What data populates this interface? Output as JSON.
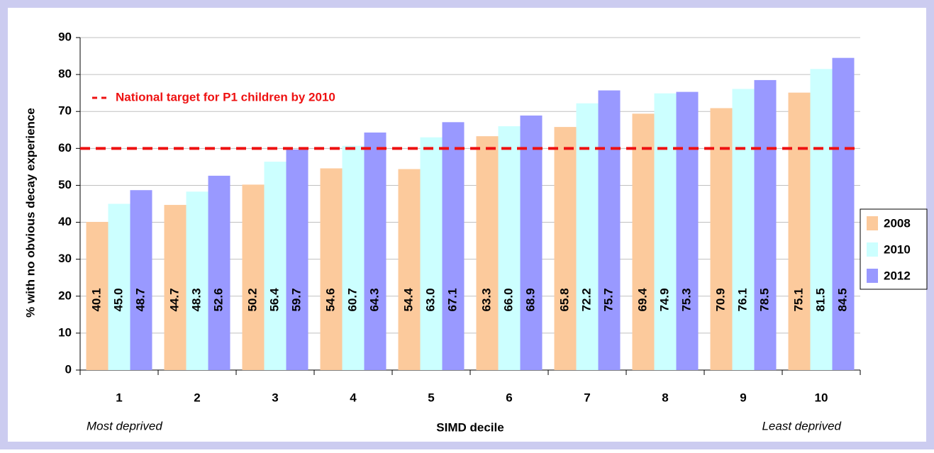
{
  "chart_data": {
    "type": "bar",
    "x_label": "SIMD decile",
    "y_label": "% with no obvious decay experience",
    "x_notes": [
      "Most deprived",
      "Least deprived"
    ],
    "categories": [
      "1",
      "2",
      "3",
      "4",
      "5",
      "6",
      "7",
      "8",
      "9",
      "10"
    ],
    "series": [
      {
        "name": "2008",
        "color": "#fcca9c",
        "values": [
          40.1,
          44.7,
          50.2,
          54.6,
          54.4,
          63.3,
          65.8,
          69.4,
          70.9,
          75.1
        ],
        "value_labels": [
          "40.1",
          "44.7",
          "50.2",
          "54.6",
          "54.4",
          "63.3",
          "65.8",
          "69.4",
          "70.9",
          "75.1"
        ]
      },
      {
        "name": "2010",
        "color": "#ccffff",
        "values": [
          45.0,
          48.3,
          56.4,
          60.7,
          63.0,
          66.0,
          72.2,
          74.9,
          76.1,
          81.5
        ],
        "value_labels": [
          "45.0",
          "48.3",
          "56.4",
          "60.7",
          "63.0",
          "66.0",
          "72.2",
          "74.9",
          "76.1",
          "81.5"
        ]
      },
      {
        "name": "2012",
        "color": "#9999ff",
        "values": [
          48.7,
          52.6,
          59.7,
          64.3,
          67.1,
          68.9,
          75.7,
          75.3,
          78.5,
          84.5
        ],
        "value_labels": [
          "48.7",
          "52.6",
          "59.7",
          "64.3",
          "67.1",
          "68.9",
          "75.7",
          "75.3",
          "78.5",
          "84.5"
        ]
      }
    ],
    "target": {
      "value": 60,
      "label": "National target for P1 children by 2010",
      "color": "#ee1111"
    },
    "ylim": [
      0,
      90
    ],
    "yticks": [
      0,
      10,
      20,
      30,
      40,
      50,
      60,
      70,
      80,
      90
    ],
    "grid": true,
    "legend": "right"
  }
}
